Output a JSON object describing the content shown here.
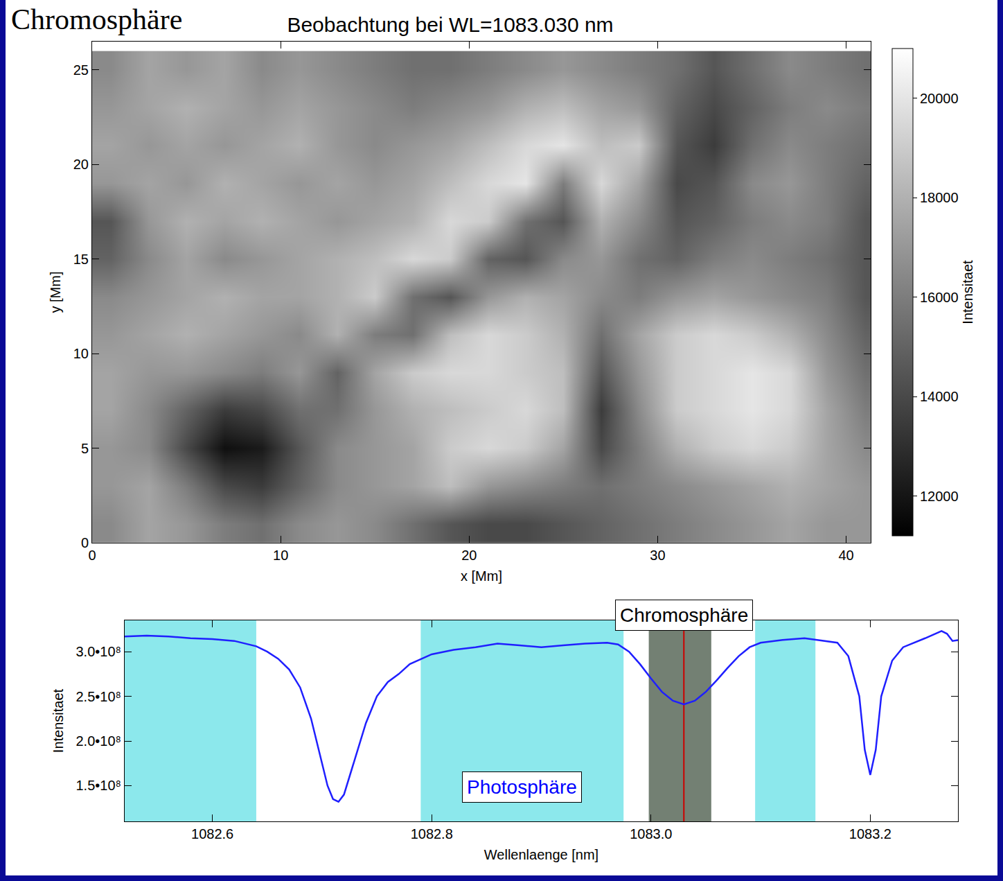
{
  "page": {
    "heading": "Chromosphäre"
  },
  "chart_data": [
    {
      "type": "heatmap",
      "title": "Beobachtung bei WL=1083.030 nm",
      "x_label": "x [Mm]",
      "y_label": "y [Mm]",
      "x": [
        1,
        3,
        5,
        7,
        9,
        11,
        13,
        15,
        17,
        19,
        21,
        23,
        25,
        27,
        29,
        31,
        33,
        35,
        37,
        39,
        41
      ],
      "y": [
        1,
        3,
        5,
        7,
        9,
        11,
        13,
        15,
        17,
        19,
        21,
        23,
        25
      ],
      "z": [
        [
          16500,
          17500,
          17000,
          16000,
          15500,
          16500,
          17000,
          16500,
          15500,
          14500,
          14000,
          14000,
          14500,
          15000,
          15500,
          16000,
          16500,
          17000,
          17500,
          17000,
          17000
        ],
        [
          17000,
          17500,
          16000,
          14000,
          13500,
          15000,
          16500,
          17000,
          17500,
          18500,
          17000,
          16500,
          16000,
          15500,
          16000,
          16500,
          17000,
          17500,
          18000,
          17500,
          17000
        ],
        [
          17000,
          16500,
          14000,
          11800,
          12200,
          14500,
          16500,
          17000,
          17500,
          19000,
          19500,
          19000,
          17500,
          14000,
          16000,
          18000,
          19000,
          19500,
          19000,
          17500,
          16500
        ],
        [
          17500,
          16500,
          15000,
          13500,
          14000,
          15500,
          15500,
          17000,
          18000,
          18500,
          19000,
          19500,
          18500,
          13500,
          16500,
          19000,
          19500,
          20000,
          19500,
          17500,
          16000
        ],
        [
          17500,
          17000,
          17000,
          16500,
          16000,
          17000,
          15000,
          17500,
          19000,
          19500,
          19500,
          19000,
          18500,
          14500,
          17000,
          19000,
          19500,
          20000,
          19500,
          17000,
          15500
        ],
        [
          17000,
          17500,
          18000,
          17500,
          17000,
          16500,
          18000,
          16000,
          15500,
          18500,
          19500,
          19000,
          18000,
          15500,
          17500,
          19000,
          19500,
          19000,
          18000,
          16500,
          15000
        ],
        [
          16500,
          17000,
          17500,
          18000,
          17500,
          17500,
          18000,
          19000,
          15500,
          14500,
          17000,
          18000,
          17500,
          16500,
          16000,
          17000,
          17500,
          17000,
          16500,
          16000,
          14500
        ],
        [
          15000,
          16500,
          17500,
          16500,
          17000,
          17500,
          18000,
          18500,
          19500,
          19000,
          15000,
          14500,
          16500,
          17000,
          15500,
          15000,
          16000,
          16500,
          16000,
          15500,
          14500
        ],
        [
          14500,
          17000,
          18000,
          17500,
          18000,
          17500,
          17000,
          17500,
          18000,
          19500,
          19000,
          15500,
          14500,
          18000,
          16500,
          14500,
          15000,
          16000,
          16500,
          16000,
          14500
        ],
        [
          17000,
          17500,
          17000,
          18000,
          17500,
          17000,
          17500,
          17000,
          17500,
          18500,
          19500,
          20000,
          16000,
          19500,
          17500,
          14000,
          14500,
          16500,
          17000,
          16000,
          15000
        ],
        [
          17500,
          17000,
          17500,
          17000,
          17500,
          18000,
          17000,
          16500,
          17000,
          17500,
          18500,
          19500,
          20000,
          18500,
          19000,
          14500,
          13500,
          15500,
          16500,
          16000,
          15500
        ],
        [
          17000,
          17500,
          18000,
          17500,
          17000,
          17500,
          17000,
          16500,
          16000,
          16500,
          17000,
          18000,
          18500,
          17500,
          17000,
          15000,
          14000,
          15000,
          16000,
          16500,
          16000
        ],
        [
          16500,
          17500,
          17000,
          17500,
          16500,
          17000,
          16500,
          16000,
          15500,
          15500,
          16000,
          16500,
          17000,
          16500,
          16000,
          15500,
          14500,
          15500,
          16500,
          16000,
          15500
        ]
      ],
      "xlim": [
        0,
        41.3
      ],
      "ylim": [
        0,
        26.5
      ],
      "xticks": [
        0,
        10,
        20,
        30,
        40
      ],
      "yticks": [
        0,
        5,
        10,
        15,
        20,
        25
      ],
      "grid": false,
      "colorbar": {
        "label": "Intensitaet",
        "range": [
          11200,
          21000
        ],
        "ticks": [
          12000,
          14000,
          16000,
          18000,
          20000
        ]
      }
    },
    {
      "type": "line",
      "x_label": "Wellenlaenge [nm]",
      "y_label": "Intensitaet",
      "color": "#1f1fff",
      "x": [
        1082.52,
        1082.54,
        1082.56,
        1082.58,
        1082.6,
        1082.62,
        1082.64,
        1082.65,
        1082.66,
        1082.67,
        1082.68,
        1082.69,
        1082.7,
        1082.705,
        1082.71,
        1082.715,
        1082.72,
        1082.73,
        1082.74,
        1082.75,
        1082.76,
        1082.77,
        1082.78,
        1082.8,
        1082.82,
        1082.84,
        1082.86,
        1082.88,
        1082.9,
        1082.92,
        1082.94,
        1082.96,
        1082.97,
        1082.98,
        1082.99,
        1083.0,
        1083.01,
        1083.02,
        1083.03,
        1083.04,
        1083.05,
        1083.06,
        1083.07,
        1083.08,
        1083.09,
        1083.1,
        1083.12,
        1083.14,
        1083.16,
        1083.17,
        1083.18,
        1083.19,
        1083.195,
        1083.2,
        1083.205,
        1083.21,
        1083.22,
        1083.23,
        1083.25,
        1083.265,
        1083.27,
        1083.275,
        1083.28
      ],
      "values": [
        317000000.0,
        318000000.0,
        317000000.0,
        315000000.0,
        314000000.0,
        312000000.0,
        306000000.0,
        300000000.0,
        292000000.0,
        280000000.0,
        260000000.0,
        225000000.0,
        175000000.0,
        150000000.0,
        135000000.0,
        132000000.0,
        140000000.0,
        180000000.0,
        220000000.0,
        250000000.0,
        266000000.0,
        275000000.0,
        286000000.0,
        297000000.0,
        302000000.0,
        305000000.0,
        309000000.0,
        307000000.0,
        305000000.0,
        307000000.0,
        309000000.0,
        310000000.0,
        308000000.0,
        300000000.0,
        286000000.0,
        270000000.0,
        255000000.0,
        245000000.0,
        241000000.0,
        245000000.0,
        255000000.0,
        268000000.0,
        282000000.0,
        295000000.0,
        305000000.0,
        310000000.0,
        313000000.0,
        315000000.0,
        312000000.0,
        310000000.0,
        295000000.0,
        250000000.0,
        190000000.0,
        162000000.0,
        190000000.0,
        250000000.0,
        290000000.0,
        305000000.0,
        315000000.0,
        323000000.0,
        320000000.0,
        312000000.0,
        313000000.0
      ],
      "xlim": [
        1082.52,
        1083.28
      ],
      "ylim": [
        110000000.0,
        335000000.0
      ],
      "xticks": [
        1082.6,
        1082.8,
        {
          "value": 1083,
          "label": "1083.0"
        },
        1083.2
      ],
      "yticks": [
        {
          "value": 150000000.0,
          "label": "1.5•10⁸"
        },
        {
          "value": 200000000.0,
          "label": "2.0•10⁸"
        },
        {
          "value": 250000000.0,
          "label": "2.5•10⁸"
        },
        {
          "value": 300000000.0,
          "label": "3.0•10⁸"
        }
      ],
      "grid": false,
      "bands": [
        {
          "label": "Photosphäre",
          "color": "#66e0e6",
          "ranges": [
            [
              1082.52,
              1082.64
            ],
            [
              1082.79,
              1082.975
            ],
            [
              1083.095,
              1083.15
            ]
          ]
        },
        {
          "label": "Chromosphäre",
          "color": "#5a6a5a",
          "ranges": [
            [
              1082.998,
              1083.055
            ]
          ],
          "center": 1083.03,
          "center_color": "#cc0000"
        }
      ]
    }
  ]
}
